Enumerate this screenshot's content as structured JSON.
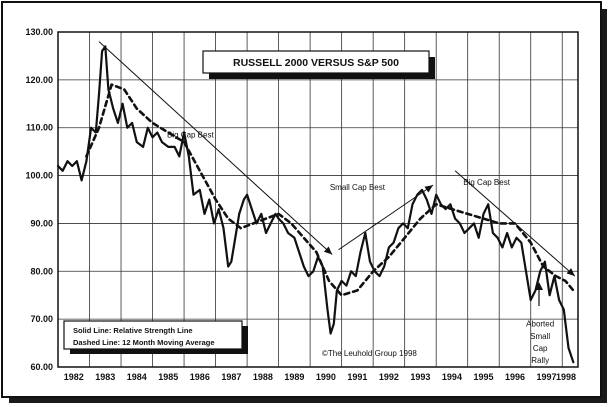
{
  "chart_data": {
    "type": "line",
    "title": "RUSSELL 2000 VERSUS S&P 500",
    "xlabel": "",
    "ylabel": "",
    "xlim": [
      1982,
      1998.5
    ],
    "ylim": [
      60,
      130
    ],
    "x_ticks": [
      "1982",
      "1983",
      "1984",
      "1985",
      "1986",
      "1987",
      "1988",
      "1989",
      "1990",
      "1991",
      "1992",
      "1993",
      "1994",
      "1995",
      "1996",
      "1997",
      "1998"
    ],
    "y_ticks": [
      "130.00",
      "120.00",
      "110.00",
      "100.00",
      "90.00",
      "80.00",
      "70.00",
      "60.00"
    ],
    "legend": {
      "solid": "Solid Line: Relative Strength Line",
      "dashed": "Dashed Line: 12 Month Moving Average"
    },
    "copyright": "©The Leuhold Group 1998",
    "annotations": [
      {
        "text": "Big Cap Best",
        "x": 1986.2,
        "y": 108
      },
      {
        "text": "Small Cap Best",
        "x": 1991.5,
        "y": 97
      },
      {
        "text": "Big Cap Best",
        "x": 1995.6,
        "y": 98
      },
      {
        "text": "Aborted",
        "x": 1997.3,
        "y": 68.5
      },
      {
        "text": "Small",
        "x": 1997.3,
        "y": 65.8
      },
      {
        "text": "Cap",
        "x": 1997.3,
        "y": 63.3
      },
      {
        "text": "Rally",
        "x": 1997.3,
        "y": 60.8
      }
    ],
    "trend_lines": [
      {
        "x1": 1983.3,
        "y1": 128,
        "x2": 1990.7,
        "y2": 83.5
      },
      {
        "x1": 1990.9,
        "y1": 84.5,
        "x2": 1993.9,
        "y2": 98
      },
      {
        "x1": 1994.6,
        "y1": 101,
        "x2": 1998.4,
        "y2": 79
      }
    ],
    "series": [
      {
        "name": "Relative Strength Line",
        "style": "solid",
        "x": [
          1982.0,
          1982.15,
          1982.3,
          1982.45,
          1982.6,
          1982.75,
          1982.9,
          1983.05,
          1983.2,
          1983.3,
          1983.4,
          1983.5,
          1983.6,
          1983.75,
          1983.9,
          1984.05,
          1984.2,
          1984.35,
          1984.5,
          1984.7,
          1984.85,
          1985.0,
          1985.15,
          1985.3,
          1985.5,
          1985.7,
          1985.85,
          1986.0,
          1986.15,
          1986.3,
          1986.5,
          1986.65,
          1986.8,
          1986.95,
          1987.1,
          1987.25,
          1987.4,
          1987.5,
          1987.6,
          1987.75,
          1987.9,
          1988.0,
          1988.15,
          1988.3,
          1988.45,
          1988.6,
          1988.75,
          1988.9,
          1989.0,
          1989.15,
          1989.3,
          1989.5,
          1989.65,
          1989.8,
          1989.95,
          1990.1,
          1990.25,
          1990.4,
          1990.55,
          1990.65,
          1990.75,
          1990.85,
          1991.0,
          1991.15,
          1991.3,
          1991.45,
          1991.6,
          1991.75,
          1991.9,
          1992.05,
          1992.2,
          1992.35,
          1992.5,
          1992.65,
          1992.8,
          1992.95,
          1993.1,
          1993.25,
          1993.4,
          1993.55,
          1993.7,
          1993.85,
          1994.0,
          1994.15,
          1994.3,
          1994.45,
          1994.6,
          1994.75,
          1994.9,
          1995.05,
          1995.2,
          1995.35,
          1995.5,
          1995.65,
          1995.8,
          1995.95,
          1996.1,
          1996.25,
          1996.4,
          1996.55,
          1996.7,
          1996.85,
          1997.0,
          1997.15,
          1997.3,
          1997.45,
          1997.6,
          1997.75,
          1997.9,
          1998.05,
          1998.2,
          1998.35
        ],
        "values": [
          102,
          101,
          103,
          102,
          103,
          99,
          103,
          110,
          109,
          117,
          126,
          127,
          118,
          114,
          111,
          115,
          110,
          111,
          107,
          106,
          110,
          108,
          109,
          107,
          106,
          106,
          104,
          109,
          104,
          96,
          97,
          92,
          95,
          90,
          93,
          89,
          81,
          82,
          86,
          92,
          95,
          96,
          93,
          90,
          92,
          88,
          90,
          92,
          91,
          90,
          88,
          87,
          84,
          81,
          79,
          80,
          83,
          81,
          72,
          67,
          69,
          76,
          78,
          77,
          80,
          79,
          84,
          88,
          82,
          80,
          79,
          81,
          85,
          86,
          89,
          90,
          89,
          94,
          96,
          97,
          95,
          92,
          96,
          94,
          93,
          94,
          91,
          90,
          88,
          89,
          90,
          87,
          92,
          94,
          88,
          87,
          85,
          88,
          85,
          87,
          86,
          80,
          74,
          76,
          80,
          82,
          75,
          79,
          74,
          72,
          64,
          61
        ]
      },
      {
        "name": "12 Month Moving Average",
        "style": "dashed",
        "x": [
          1982.9,
          1983.3,
          1983.7,
          1984.1,
          1984.5,
          1985.0,
          1985.5,
          1986.0,
          1986.5,
          1987.0,
          1987.4,
          1987.8,
          1988.2,
          1988.6,
          1989.0,
          1989.4,
          1989.8,
          1990.2,
          1990.6,
          1991.0,
          1991.5,
          1992.0,
          1992.5,
          1993.0,
          1993.5,
          1994.0,
          1994.5,
          1995.0,
          1995.5,
          1996.0,
          1996.5,
          1997.0,
          1997.4,
          1997.8,
          1998.1,
          1998.35
        ],
        "values": [
          104,
          110,
          119,
          118,
          114,
          111,
          109,
          107,
          101,
          95,
          91,
          89,
          90,
          91,
          92,
          90,
          87,
          84,
          78,
          75,
          76,
          80,
          83,
          87,
          91,
          94,
          93,
          92,
          91,
          90,
          90,
          86,
          81,
          79,
          78,
          76
        ]
      }
    ]
  }
}
